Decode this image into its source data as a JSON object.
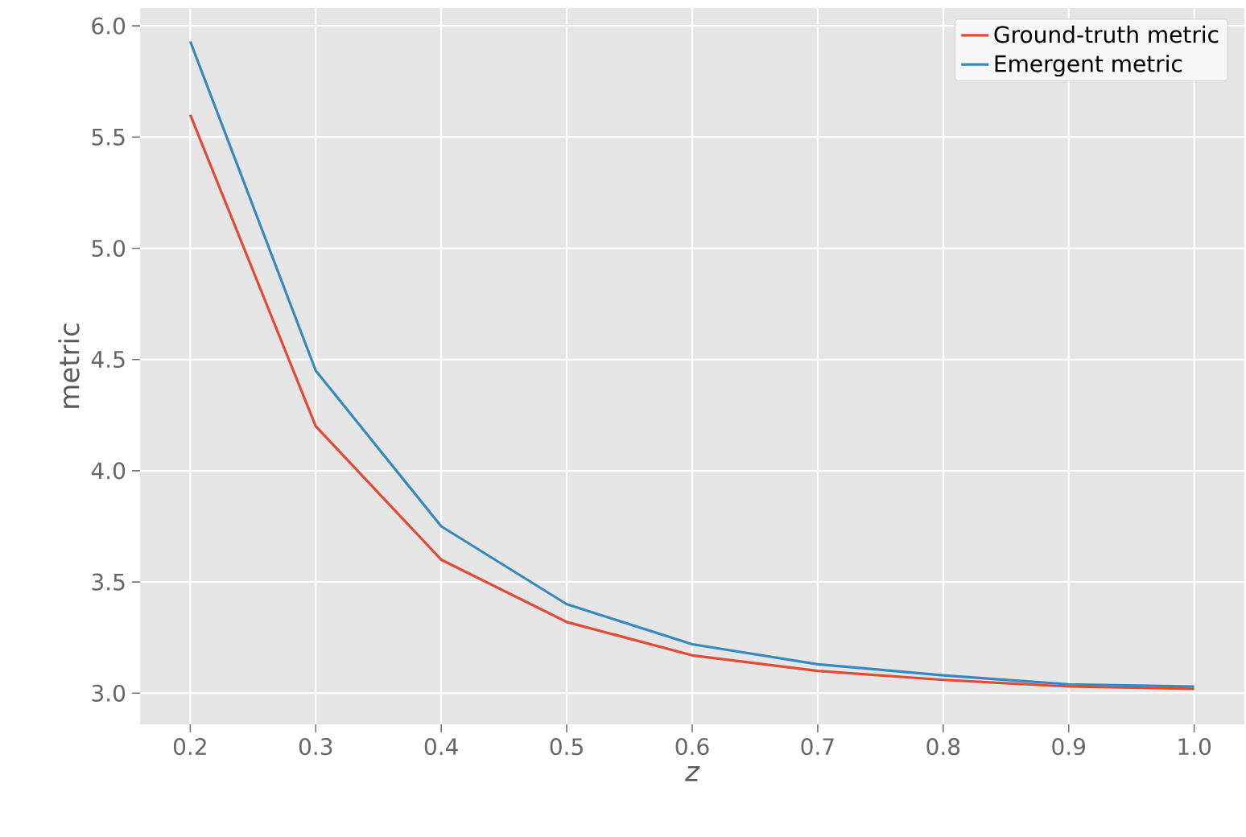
{
  "chart_data": {
    "type": "line",
    "xlabel": "z",
    "ylabel": "metric",
    "x": [
      0.2,
      0.3,
      0.4,
      0.5,
      0.6,
      0.7,
      0.8,
      0.9,
      1.0
    ],
    "series": [
      {
        "name": "Ground-truth metric",
        "color": "#e24a33",
        "values": [
          5.6,
          4.2,
          3.6,
          3.32,
          3.17,
          3.1,
          3.06,
          3.03,
          3.02
        ]
      },
      {
        "name": "Emergent metric",
        "color": "#348abd",
        "values": [
          5.93,
          4.45,
          3.75,
          3.4,
          3.22,
          3.13,
          3.08,
          3.04,
          3.03
        ]
      }
    ],
    "xlim": [
      0.16,
      1.04
    ],
    "ylim": [
      2.86,
      6.08
    ],
    "xticks": [
      0.2,
      0.3,
      0.4,
      0.5,
      0.6,
      0.7,
      0.8,
      0.9,
      {
        "value": 1,
        "label": "1.0"
      }
    ],
    "yticks": [
      {
        "value": 3,
        "label": "3.0"
      },
      3.5,
      {
        "value": 4,
        "label": "4.0"
      },
      4.5,
      {
        "value": 5,
        "label": "5.0"
      },
      5.5,
      {
        "value": 6,
        "label": "6.0"
      }
    ],
    "grid": true,
    "legend": "top right",
    "marker": "none",
    "line_style": "solid"
  }
}
